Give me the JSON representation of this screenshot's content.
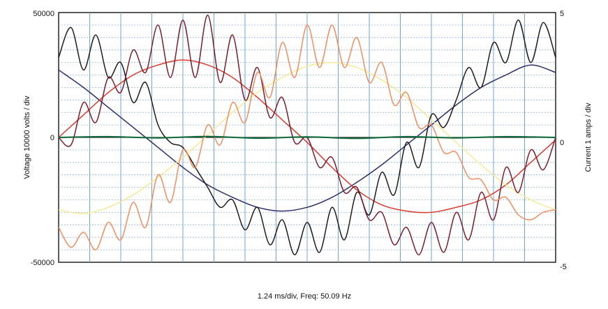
{
  "chart_data": {
    "type": "line",
    "title": "",
    "xlabel": "1.24 ms/div, Freq: 50.09 Hz",
    "ylabel_left": "Voltage  10000  volts / div",
    "ylabel_right": "Current  1  amps / div",
    "x_divisions": 10,
    "xlim": [
      0,
      10
    ],
    "ylim_left": [
      -50000,
      50000
    ],
    "ylim_right": [
      -5,
      5
    ],
    "left_ticks": [
      "50000",
      "0",
      "-50000"
    ],
    "right_ticks": [
      "5",
      "0",
      "-5"
    ],
    "grid": true,
    "series": [
      {
        "color": "#2b2f6b",
        "axis": "left",
        "x": [
          0,
          0.5,
          1,
          1.5,
          2,
          2.5,
          3,
          3.5,
          4,
          4.5,
          5,
          5.5,
          6,
          6.5,
          7,
          7.5,
          8,
          8.5,
          9,
          9.5,
          10
        ],
        "values": [
          27000,
          20000,
          12000,
          4000,
          -4000,
          -12000,
          -19000,
          -24000,
          -28000,
          -29500,
          -28000,
          -24000,
          -18000,
          -11000,
          -3000,
          5000,
          13000,
          20000,
          25000,
          29000,
          26000
        ]
      },
      {
        "color": "#d83a2c",
        "axis": "left",
        "x": [
          0,
          0.5,
          1,
          1.5,
          2,
          2.5,
          3,
          3.5,
          4,
          4.5,
          5,
          5.5,
          6,
          6.5,
          7,
          7.5,
          8,
          8.5,
          9,
          9.5,
          10
        ],
        "values": [
          0,
          9000,
          18000,
          25000,
          29000,
          31000,
          29000,
          24000,
          16000,
          7000,
          -2000,
          -12000,
          -21000,
          -27000,
          -29500,
          -30000,
          -28000,
          -25000,
          -19000,
          -10000,
          -1000
        ]
      },
      {
        "color": "#f6ea9a",
        "axis": "left",
        "x": [
          0,
          0.5,
          1,
          1.5,
          2,
          2.5,
          3,
          3.5,
          4,
          4.5,
          5,
          5.5,
          6,
          6.5,
          7,
          7.5,
          8,
          8.5,
          9,
          9.5,
          10
        ],
        "values": [
          -29000,
          -30500,
          -28000,
          -23000,
          -16000,
          -8000,
          1000,
          10000,
          18000,
          24000,
          28500,
          30000,
          28000,
          23000,
          16000,
          7000,
          -2000,
          -11000,
          -19000,
          -25000,
          -29000
        ]
      },
      {
        "color": "#1c1c1c",
        "axis": "left",
        "x": [
          0,
          0.25,
          0.5,
          0.75,
          1,
          1.25,
          1.5,
          1.75,
          2,
          2.25,
          2.5,
          2.75,
          3,
          3.25,
          3.5,
          3.75,
          4,
          4.25,
          4.5,
          4.75,
          5,
          5.25,
          5.5,
          5.75,
          6,
          6.25,
          6.5,
          6.75,
          7,
          7.25,
          7.5,
          7.75,
          8,
          8.25,
          8.5,
          8.75,
          9,
          9.25,
          9.5,
          9.75,
          10
        ],
        "values": [
          32000,
          44000,
          27000,
          41000,
          24000,
          30000,
          14000,
          22000,
          5000,
          -2000,
          -4000,
          -12000,
          -20000,
          -28000,
          -25000,
          -37000,
          -28000,
          -43000,
          -33000,
          -47000,
          -34000,
          -46000,
          -28000,
          -41000,
          -22000,
          -31000,
          -14000,
          -23000,
          -2000,
          -12000,
          9000,
          4000,
          15000,
          28000,
          20000,
          38000,
          30000,
          47000,
          30000,
          46000,
          32000
        ]
      },
      {
        "color": "#7a1d2c",
        "axis": "left",
        "x": [
          0,
          0.25,
          0.5,
          0.75,
          1,
          1.25,
          1.5,
          1.75,
          2,
          2.25,
          2.5,
          2.75,
          3,
          3.25,
          3.5,
          3.75,
          4,
          4.25,
          4.5,
          4.75,
          5,
          5.25,
          5.5,
          5.75,
          6,
          6.25,
          6.5,
          6.75,
          7,
          7.25,
          7.5,
          7.75,
          8,
          8.25,
          8.5,
          8.75,
          9,
          9.25,
          9.5,
          9.75,
          10
        ],
        "values": [
          0,
          -3000,
          14000,
          6000,
          24000,
          18000,
          35000,
          26000,
          45000,
          24000,
          47000,
          24000,
          49000,
          22000,
          41000,
          15000,
          28000,
          8000,
          16000,
          -2000,
          0,
          -12000,
          -8000,
          -22000,
          -20000,
          -33000,
          -30000,
          -43000,
          -36000,
          -47000,
          -34000,
          -46000,
          -30000,
          -41000,
          -22000,
          -33000,
          -12000,
          -22000,
          -5000,
          -13000,
          0
        ]
      },
      {
        "color": "#ef8d5f",
        "axis": "left",
        "x": [
          0,
          0.25,
          0.5,
          0.75,
          1,
          1.25,
          1.5,
          1.75,
          2,
          2.25,
          2.5,
          2.75,
          3,
          3.25,
          3.5,
          3.75,
          4,
          4.25,
          4.5,
          4.75,
          5,
          5.25,
          5.5,
          5.75,
          6,
          6.25,
          6.5,
          6.75,
          7,
          7.25,
          7.5,
          7.75,
          8,
          8.25,
          8.5,
          8.75,
          9,
          9.25,
          9.5,
          9.75,
          10
        ],
        "values": [
          -36000,
          -44000,
          -38000,
          -45000,
          -34000,
          -41000,
          -26000,
          -36000,
          -15000,
          -26000,
          -5000,
          -12000,
          5000,
          -3000,
          14000,
          6000,
          26000,
          16000,
          38000,
          24000,
          45000,
          28000,
          45000,
          28000,
          40000,
          22000,
          30000,
          13000,
          18000,
          4000,
          5000,
          -6000,
          -6000,
          -16000,
          -17000,
          -25000,
          -24000,
          -31000,
          -33000,
          -30000,
          -29000
        ]
      },
      {
        "color": "#0f6b3a",
        "axis": "left",
        "x": [
          0,
          1,
          2,
          3,
          4,
          5,
          6,
          7,
          8,
          9,
          10
        ],
        "values": [
          0,
          300,
          -200,
          400,
          -300,
          200,
          -400,
          300,
          -200,
          300,
          0
        ]
      }
    ]
  }
}
